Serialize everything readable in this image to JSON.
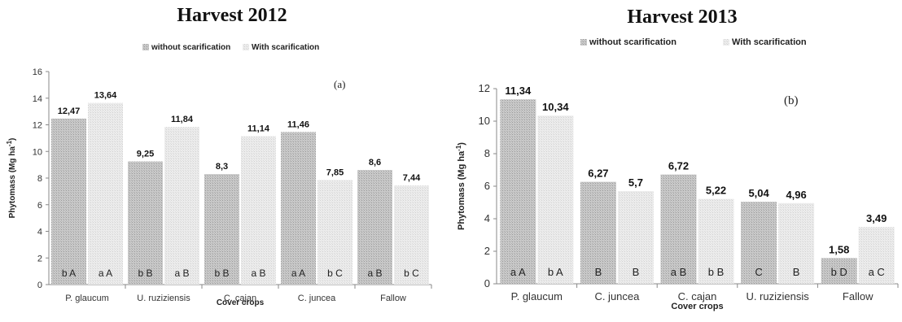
{
  "chart_data": [
    {
      "type": "bar",
      "title": "Harvest 2012",
      "tag": "(a)",
      "xlabel": "Cover crops",
      "ylabel": "Phytomass (Mg ha",
      "ylabel_sup": "-1",
      "ylabel_close": ")",
      "ylim": [
        0,
        16
      ],
      "yticks": [
        "0",
        "2",
        "4",
        "6",
        "8",
        "10",
        "12",
        "14",
        "16"
      ],
      "legend_position": "top",
      "categories": [
        "P. glaucum",
        "U. ruziziensis",
        "C. cajan",
        "C. juncea",
        "Fallow"
      ],
      "series": [
        {
          "name": "without scarification",
          "color": "#c9c9c9",
          "values": [
            12.47,
            9.25,
            8.3,
            11.46,
            8.6
          ],
          "labels": [
            "12,47",
            "9,25",
            "8,3",
            "11,46",
            "8,6"
          ],
          "letters": [
            "b A",
            "b B",
            "b B",
            "a A",
            "a B"
          ]
        },
        {
          "name": "With scarification",
          "color": "#ececec",
          "values": [
            13.64,
            11.84,
            11.14,
            7.85,
            7.44
          ],
          "labels": [
            "13,64",
            "11,84",
            "11,14",
            "7,85",
            "7,44"
          ],
          "letters": [
            "a A",
            "a B",
            "a B",
            "b C",
            "b C"
          ]
        }
      ]
    },
    {
      "type": "bar",
      "title": "Harvest 2013",
      "tag": "(b)",
      "xlabel": "Cover crops",
      "ylabel": "Phytomass (Mg ha",
      "ylabel_sup": "-1",
      "ylabel_close": ")",
      "ylim": [
        0,
        12
      ],
      "yticks": [
        "0",
        "2",
        "4",
        "6",
        "8",
        "10",
        "12"
      ],
      "legend_position": "top",
      "categories": [
        "P. glaucum",
        "C. juncea",
        "C. cajan",
        "U. ruziziensis",
        "Fallow"
      ],
      "series": [
        {
          "name": "without scarification",
          "color": "#c9c9c9",
          "values": [
            11.34,
            6.27,
            6.72,
            5.04,
            1.58
          ],
          "labels": [
            "11,34",
            "6,27",
            "6,72",
            "5,04",
            "1,58"
          ],
          "letters": [
            "a A",
            "B",
            "a B",
            "C",
            "b D"
          ]
        },
        {
          "name": "With scarification",
          "color": "#ececec",
          "values": [
            10.34,
            5.7,
            5.22,
            4.96,
            3.49
          ],
          "labels": [
            "10,34",
            "5,7",
            "5,22",
            "4,96",
            "3,49"
          ],
          "letters": [
            "b A",
            "B",
            "b B",
            "B",
            "a C"
          ]
        }
      ]
    }
  ]
}
